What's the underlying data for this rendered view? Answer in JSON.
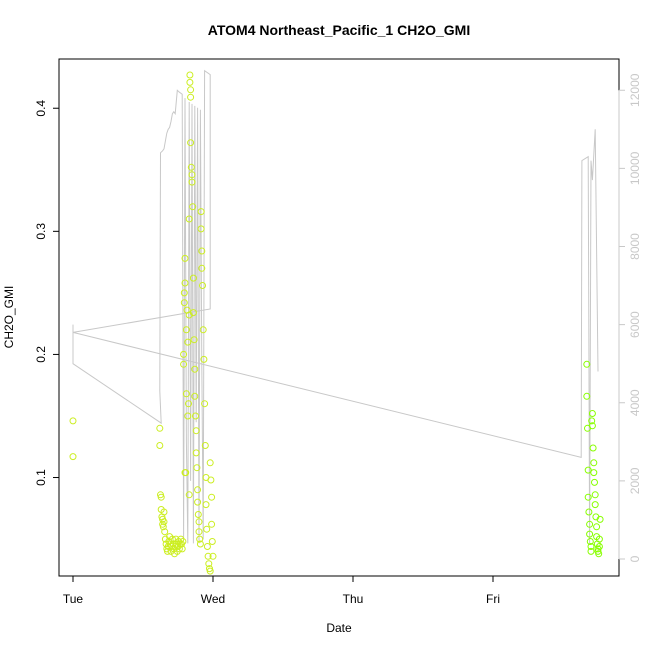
{
  "chart_data": {
    "type": "scatter",
    "title": "ATOM4 Northeast_Pacific_1 CH2O_GMI",
    "xlabel": "Date",
    "ylabel": "CH2O_GMI",
    "x_ticks": [
      "Tue",
      "Wed",
      "Thu",
      "Fri"
    ],
    "x_tick_days": [
      0,
      1,
      2,
      3
    ],
    "xlim_days": [
      -0.1,
      3.9
    ],
    "ylim": [
      0.02,
      0.44
    ],
    "y_ticks": [
      0.1,
      0.2,
      0.3,
      0.4
    ],
    "y_tick_labels": [
      "0.1",
      "0.2",
      "0.3",
      "0.4"
    ],
    "y2lim": [
      0,
      12800
    ],
    "y2_ticks": [
      0,
      2000,
      4000,
      6000,
      8000,
      10000,
      12000
    ],
    "y2_tick_labels": [
      "0",
      "2000",
      "4000",
      "6000",
      "8000",
      "10000",
      "12000"
    ],
    "grid": false,
    "colors": {
      "points_start": "#ccee22",
      "points_end": "#88ff00",
      "line": "#c8c8c8",
      "axis": "#000000",
      "axis_right": "#c8c8c8"
    },
    "series": [
      {
        "kind": "points",
        "points": [
          [
            0.0,
            0.146
          ],
          [
            0.0,
            0.117
          ],
          [
            0.62,
            0.14
          ],
          [
            0.62,
            0.126
          ],
          [
            0.625,
            0.086
          ],
          [
            0.63,
            0.084
          ],
          [
            0.63,
            0.074
          ],
          [
            0.635,
            0.068
          ],
          [
            0.64,
            0.066
          ],
          [
            0.64,
            0.062
          ],
          [
            0.645,
            0.06
          ],
          [
            0.65,
            0.072
          ],
          [
            0.65,
            0.064
          ],
          [
            0.655,
            0.056
          ],
          [
            0.66,
            0.05
          ],
          [
            0.665,
            0.046
          ],
          [
            0.67,
            0.042
          ],
          [
            0.675,
            0.04
          ],
          [
            0.68,
            0.044
          ],
          [
            0.685,
            0.048
          ],
          [
            0.69,
            0.052
          ],
          [
            0.695,
            0.046
          ],
          [
            0.7,
            0.04
          ],
          [
            0.705,
            0.044
          ],
          [
            0.71,
            0.05
          ],
          [
            0.715,
            0.046
          ],
          [
            0.72,
            0.042
          ],
          [
            0.725,
            0.038
          ],
          [
            0.73,
            0.044
          ],
          [
            0.735,
            0.05
          ],
          [
            0.74,
            0.046
          ],
          [
            0.745,
            0.04
          ],
          [
            0.75,
            0.044
          ],
          [
            0.755,
            0.048
          ],
          [
            0.76,
            0.042
          ],
          [
            0.765,
            0.046
          ],
          [
            0.77,
            0.05
          ],
          [
            0.775,
            0.046
          ],
          [
            0.78,
            0.042
          ],
          [
            0.785,
            0.048
          ],
          [
            0.79,
            0.2
          ],
          [
            0.79,
            0.192
          ],
          [
            0.795,
            0.25
          ],
          [
            0.795,
            0.242
          ],
          [
            0.8,
            0.278
          ],
          [
            0.8,
            0.258
          ],
          [
            0.8,
            0.104
          ],
          [
            0.805,
            0.104
          ],
          [
            0.81,
            0.22
          ],
          [
            0.81,
            0.168
          ],
          [
            0.815,
            0.236
          ],
          [
            0.82,
            0.21
          ],
          [
            0.82,
            0.15
          ],
          [
            0.825,
            0.16
          ],
          [
            0.83,
            0.31
          ],
          [
            0.83,
            0.232
          ],
          [
            0.83,
            0.086
          ],
          [
            0.835,
            0.427
          ],
          [
            0.835,
            0.421
          ],
          [
            0.84,
            0.415
          ],
          [
            0.84,
            0.409
          ],
          [
            0.84,
            0.372
          ],
          [
            0.845,
            0.352
          ],
          [
            0.85,
            0.346
          ],
          [
            0.85,
            0.34
          ],
          [
            0.855,
            0.32
          ],
          [
            0.86,
            0.262
          ],
          [
            0.86,
            0.234
          ],
          [
            0.865,
            0.212
          ],
          [
            0.87,
            0.188
          ],
          [
            0.87,
            0.166
          ],
          [
            0.875,
            0.15
          ],
          [
            0.88,
            0.138
          ],
          [
            0.88,
            0.12
          ],
          [
            0.885,
            0.108
          ],
          [
            0.89,
            0.09
          ],
          [
            0.89,
            0.08
          ],
          [
            0.895,
            0.07
          ],
          [
            0.9,
            0.064
          ],
          [
            0.9,
            0.056
          ],
          [
            0.905,
            0.05
          ],
          [
            0.91,
            0.046
          ],
          [
            0.915,
            0.316
          ],
          [
            0.915,
            0.302
          ],
          [
            0.92,
            0.284
          ],
          [
            0.92,
            0.27
          ],
          [
            0.925,
            0.256
          ],
          [
            0.93,
            0.22
          ],
          [
            0.935,
            0.196
          ],
          [
            0.94,
            0.16
          ],
          [
            0.945,
            0.126
          ],
          [
            0.95,
            0.1
          ],
          [
            0.95,
            0.078
          ],
          [
            0.955,
            0.058
          ],
          [
            0.96,
            0.044
          ],
          [
            0.965,
            0.036
          ],
          [
            0.97,
            0.03
          ],
          [
            0.975,
            0.026
          ],
          [
            0.98,
            0.024
          ],
          [
            0.98,
            0.112
          ],
          [
            0.985,
            0.098
          ],
          [
            0.99,
            0.084
          ],
          [
            0.99,
            0.062
          ],
          [
            0.995,
            0.048
          ],
          [
            1.0,
            0.036
          ],
          [
            3.67,
            0.192
          ],
          [
            3.67,
            0.166
          ],
          [
            3.675,
            0.14
          ],
          [
            3.68,
            0.106
          ],
          [
            3.68,
            0.084
          ],
          [
            3.685,
            0.072
          ],
          [
            3.69,
            0.062
          ],
          [
            3.69,
            0.054
          ],
          [
            3.695,
            0.048
          ],
          [
            3.7,
            0.044
          ],
          [
            3.7,
            0.04
          ],
          [
            3.705,
            0.146
          ],
          [
            3.71,
            0.152
          ],
          [
            3.71,
            0.142
          ],
          [
            3.715,
            0.124
          ],
          [
            3.72,
            0.112
          ],
          [
            3.72,
            0.104
          ],
          [
            3.725,
            0.096
          ],
          [
            3.73,
            0.086
          ],
          [
            3.73,
            0.078
          ],
          [
            3.735,
            0.068
          ],
          [
            3.74,
            0.06
          ],
          [
            3.74,
            0.052
          ],
          [
            3.745,
            0.046
          ],
          [
            3.75,
            0.042
          ],
          [
            3.75,
            0.04
          ],
          [
            3.755,
            0.038
          ],
          [
            3.76,
            0.044
          ],
          [
            3.76,
            0.05
          ],
          [
            3.765,
            0.066
          ]
        ]
      },
      {
        "kind": "line",
        "axis": "right",
        "points": [
          [
            0.0,
            6000
          ],
          [
            0.0,
            5000
          ],
          [
            0.63,
            3480
          ],
          [
            0.62,
            4300
          ],
          [
            0.625,
            10400
          ],
          [
            0.64,
            10450
          ],
          [
            0.65,
            10500
          ],
          [
            0.66,
            10700
          ],
          [
            0.67,
            10900
          ],
          [
            0.68,
            11000
          ],
          [
            0.69,
            11050
          ],
          [
            0.7,
            11200
          ],
          [
            0.71,
            11400
          ],
          [
            0.72,
            11450
          ],
          [
            0.73,
            11400
          ],
          [
            0.745,
            12000
          ],
          [
            0.76,
            11950
          ],
          [
            0.78,
            11900
          ],
          [
            0.79,
            500
          ],
          [
            0.8,
            11800
          ],
          [
            0.81,
            3000
          ],
          [
            0.82,
            400
          ],
          [
            0.83,
            11700
          ],
          [
            0.84,
            2000
          ],
          [
            0.85,
            11650
          ],
          [
            0.86,
            400
          ],
          [
            0.87,
            11600
          ],
          [
            0.88,
            3500
          ],
          [
            0.89,
            11550
          ],
          [
            0.9,
            400
          ],
          [
            0.91,
            11500
          ],
          [
            0.92,
            5000
          ],
          [
            0.93,
            500
          ],
          [
            0.94,
            12500
          ],
          [
            0.98,
            12400
          ],
          [
            0.98,
            6400
          ],
          [
            0.0,
            5800
          ],
          [
            3.63,
            2600
          ],
          [
            3.635,
            10200
          ],
          [
            3.68,
            10300
          ],
          [
            3.69,
            400
          ],
          [
            3.7,
            10200
          ],
          [
            3.71,
            9700
          ],
          [
            3.73,
            11000
          ],
          [
            3.75,
            4800
          ]
        ]
      }
    ]
  }
}
